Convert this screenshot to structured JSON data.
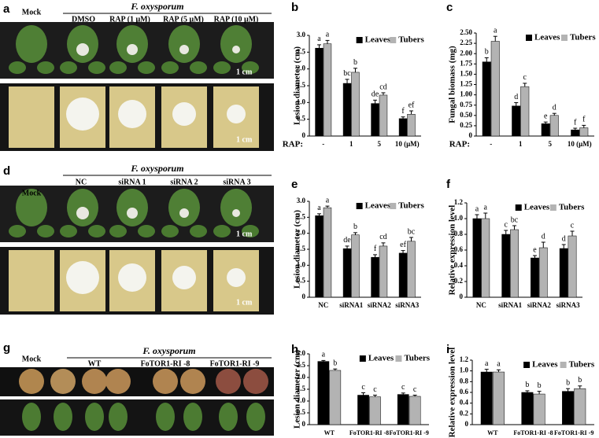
{
  "panels": {
    "a": {
      "label": "a",
      "mock": "Mock",
      "pathogen": "F. oxysporum",
      "treatments": [
        "DMSO",
        "RAP (1 μM)",
        "RAP (5 μM)",
        "RAP (10 μM)"
      ],
      "scale_top": "1 cm",
      "scale_bottom": "1 cm"
    },
    "d": {
      "label": "d",
      "mock": "Mock",
      "pathogen": "F. oxysporum",
      "treatments": [
        "NC",
        "siRNA 1",
        "siRNA 2",
        "siRNA 3"
      ],
      "scale_top": "1 cm",
      "scale_bottom": "1 cm"
    },
    "g": {
      "label": "g",
      "mock": "Mock",
      "pathogen": "F. oxysporum",
      "treatments": [
        "WT",
        "FoTOR1-RI -8",
        "FoTOR1-RI -9"
      ]
    }
  },
  "chart_data": [
    {
      "type": "bar",
      "panel": "b",
      "ylabel": "Lesion diameter (cm)",
      "xlabel": "RAP:",
      "categories": [
        "-",
        "1",
        "5",
        "10 (μM)"
      ],
      "legend": "top-right",
      "ylim": [
        0,
        3
      ],
      "yticks": [
        0,
        0.5,
        {
          "value": 1,
          "label": "1.0"
        },
        1.5,
        {
          "value": 2,
          "label": "2.0"
        },
        2.5,
        {
          "value": 3,
          "label": "3.0"
        }
      ],
      "series": [
        {
          "name": "Leaves",
          "color": "#000000",
          "values": [
            2.62,
            1.57,
            0.97,
            0.52
          ],
          "errors": [
            0.1,
            0.12,
            0.1,
            0.05
          ],
          "letters": [
            "a",
            "bc",
            "de",
            "f"
          ]
        },
        {
          "name": "Tubers",
          "color": "#b3b3b3",
          "values": [
            2.75,
            1.9,
            1.22,
            0.65
          ],
          "errors": [
            0.1,
            0.12,
            0.07,
            0.1
          ],
          "letters": [
            "a",
            "b",
            "cd",
            "ef"
          ]
        }
      ]
    },
    {
      "type": "bar",
      "panel": "c",
      "ylabel": "Fungal biomass (mg)",
      "xlabel": "RAP:",
      "categories": [
        "-",
        "1",
        "5",
        "10 (μM)"
      ],
      "legend": "top-right",
      "ylim": [
        0,
        2.5
      ],
      "yticks": [
        0,
        0.25,
        {
          "value": 0.5,
          "label": "0.50"
        },
        0.75,
        {
          "value": 1,
          "label": "1.00"
        },
        1.25,
        {
          "value": 1.5,
          "label": "1.50"
        },
        1.75,
        {
          "value": 2,
          "label": "2.00"
        },
        2.25,
        {
          "value": 2.5,
          "label": "2.50"
        }
      ],
      "series": [
        {
          "name": "Leaves",
          "color": "#000000",
          "values": [
            1.8,
            0.73,
            0.3,
            0.15
          ],
          "errors": [
            0.1,
            0.08,
            0.04,
            0.04
          ],
          "letters": [
            "b",
            "d",
            "e",
            "f"
          ]
        },
        {
          "name": "Tubers",
          "color": "#b3b3b3",
          "values": [
            2.3,
            1.2,
            0.5,
            0.2
          ],
          "errors": [
            0.12,
            0.08,
            0.05,
            0.06
          ],
          "letters": [
            "a",
            "c",
            "d",
            "f"
          ]
        }
      ]
    },
    {
      "type": "bar",
      "panel": "e",
      "ylabel": "Lesion diameter (cm)",
      "categories": [
        "NC",
        "siRNA1",
        "siRNA2",
        "siRNA3"
      ],
      "legend": "top-right",
      "ylim": [
        0,
        3
      ],
      "yticks": [
        0,
        0.5,
        {
          "value": 1,
          "label": "1.0"
        },
        1.5,
        {
          "value": 2,
          "label": "2.0"
        },
        2.5,
        {
          "value": 3,
          "label": "3.0"
        }
      ],
      "series": [
        {
          "name": "Leaves",
          "color": "#000000",
          "values": [
            2.55,
            1.52,
            1.25,
            1.38
          ],
          "errors": [
            0.06,
            0.08,
            0.08,
            0.08
          ],
          "letters": [
            "a",
            "de",
            "f",
            "ef"
          ]
        },
        {
          "name": "Tubers",
          "color": "#b3b3b3",
          "values": [
            2.8,
            1.95,
            1.6,
            1.75
          ],
          "errors": [
            0.05,
            0.07,
            0.1,
            0.12
          ],
          "letters": [
            "a",
            "b",
            "cd",
            "bc"
          ]
        }
      ]
    },
    {
      "type": "bar",
      "panel": "f",
      "ylabel": "Relative expression level",
      "categories": [
        "NC",
        "siRNA1",
        "siRNA2",
        "siRNA3"
      ],
      "legend": "top-right",
      "ylim": [
        0,
        1.2
      ],
      "yticks": [
        0,
        0.2,
        0.4,
        0.6,
        0.8,
        {
          "value": 1,
          "label": "1.0"
        },
        1.2
      ],
      "series": [
        {
          "name": "Leaves",
          "color": "#000000",
          "values": [
            1.0,
            0.8,
            0.5,
            0.62
          ],
          "errors": [
            0.05,
            0.05,
            0.03,
            0.05
          ],
          "letters": [
            "a",
            "c",
            "e",
            "d"
          ]
        },
        {
          "name": "Tubers",
          "color": "#b3b3b3",
          "values": [
            1.0,
            0.86,
            0.63,
            0.78
          ],
          "errors": [
            0.07,
            0.05,
            0.07,
            0.06
          ],
          "letters": [
            "a",
            "bc",
            "d",
            "c"
          ]
        }
      ]
    },
    {
      "type": "bar",
      "panel": "h",
      "ylabel": "Lesion diameter (cm)",
      "categories": [
        "WT",
        "FoTOR1-RI -8",
        "FoTOR1-RI -9"
      ],
      "legend": "top-right",
      "ylim": [
        0,
        3
      ],
      "yticks": [
        0,
        0.5,
        {
          "value": 1,
          "label": "1.0"
        },
        1.5,
        {
          "value": 2,
          "label": "2.0"
        },
        2.5,
        {
          "value": 3,
          "label": "3.0"
        }
      ],
      "series": [
        {
          "name": "Leaves",
          "color": "#000000",
          "values": [
            2.68,
            1.25,
            1.28
          ],
          "errors": [
            0.04,
            0.1,
            0.06
          ],
          "letters": [
            "a",
            "c",
            "c"
          ]
        },
        {
          "name": "Tubers",
          "color": "#b3b3b3",
          "values": [
            2.3,
            1.18,
            1.2
          ],
          "errors": [
            0.06,
            0.07,
            0.05
          ],
          "letters": [
            "b",
            "c",
            "c"
          ]
        }
      ]
    },
    {
      "type": "bar",
      "panel": "i",
      "ylabel": "Relative expression level",
      "categories": [
        "WT",
        "FoTOR1-RI -8",
        "FoTOR1-RI -9"
      ],
      "legend": "top-right",
      "ylim": [
        0,
        1.2
      ],
      "yticks": [
        0,
        0.2,
        0.4,
        0.6,
        0.8,
        {
          "value": 1,
          "label": "1.0"
        },
        1.2
      ],
      "series": [
        {
          "name": "Leaves",
          "color": "#000000",
          "values": [
            0.98,
            0.6,
            0.62
          ],
          "errors": [
            0.05,
            0.03,
            0.05
          ],
          "letters": [
            "a",
            "b",
            "b"
          ]
        },
        {
          "name": "Tubers",
          "color": "#b3b3b3",
          "values": [
            0.98,
            0.57,
            0.67
          ],
          "errors": [
            0.04,
            0.05,
            0.05
          ],
          "letters": [
            "a",
            "b",
            "b"
          ]
        }
      ]
    }
  ]
}
